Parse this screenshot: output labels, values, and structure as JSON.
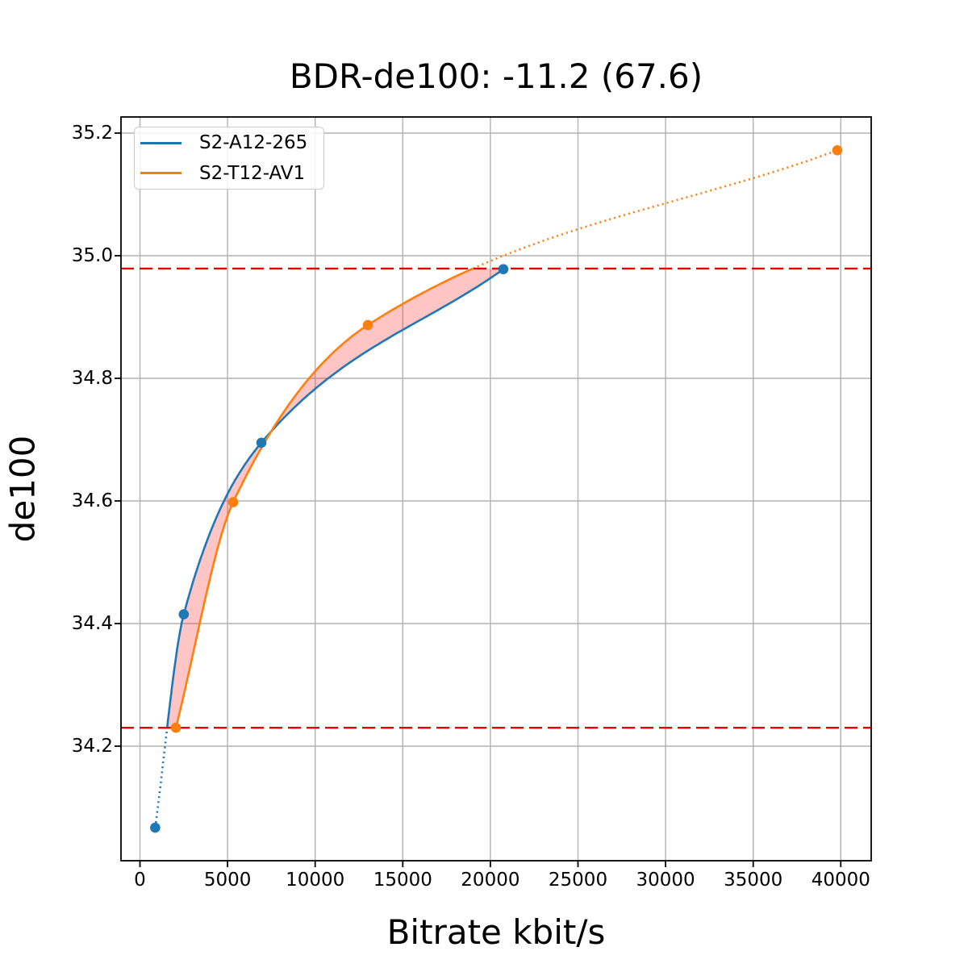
{
  "title": "BDR-de100: -11.2 (67.6)",
  "xlabel": "Bitrate kbit/s",
  "ylabel": "de100",
  "legend": [
    {
      "label": "S2-A12-265",
      "color": "#1f77b4"
    },
    {
      "label": "S2-T12-AV1",
      "color": "#ff7f0e"
    }
  ],
  "colors": {
    "series_blue": "#1f77b4",
    "series_orange": "#ff7f0e",
    "bd_interval_line": "#e60000",
    "bd_overlap_fill": "rgba(255,40,40,0.27)",
    "grid": "#b2b2b2",
    "spine": "#000000"
  },
  "chart_data": {
    "type": "line",
    "title": "BDR-de100: -11.2 (67.6)",
    "xlabel": "Bitrate kbit/s",
    "ylabel": "de100",
    "x_ticks": [
      0,
      5000,
      10000,
      15000,
      20000,
      25000,
      30000,
      35000,
      40000
    ],
    "x_tick_labels": [
      "0",
      "5000",
      "10000",
      "15000",
      "20000",
      "25000",
      "30000",
      "35000",
      "40000"
    ],
    "y_ticks": [
      35.2,
      35.0,
      34.8,
      34.6,
      34.4,
      34.2
    ],
    "y_tick_labels": [
      "35.2",
      "35.0",
      "34.8",
      "34.6",
      "34.4",
      "34.2"
    ],
    "xlim": [
      -1080,
      41740
    ],
    "ylim": [
      34.013,
      35.226
    ],
    "grid": true,
    "legend_position": "upper-left",
    "series": [
      {
        "name": "S2-A12-265",
        "color": "#1f77b4",
        "points": [
          [
            870,
            34.067
          ],
          [
            2500,
            34.415
          ],
          [
            6930,
            34.695
          ],
          [
            20740,
            34.978
          ]
        ],
        "style_note": "dotted below lower BD line, solid above, circle markers"
      },
      {
        "name": "S2-T12-AV1",
        "color": "#ff7f0e",
        "points": [
          [
            2050,
            34.23
          ],
          [
            5320,
            34.598
          ],
          [
            13010,
            34.887
          ],
          [
            39800,
            35.172
          ]
        ],
        "style_note": "solid below upper BD line, dotted above, circle markers"
      }
    ],
    "hlines": [
      {
        "y": 34.979,
        "style": "dashed",
        "color": "red",
        "meaning": "upper BD overlap bound"
      },
      {
        "y": 34.23,
        "style": "dashed",
        "color": "red",
        "meaning": "lower BD overlap bound"
      }
    ],
    "shaded_region": "area between the two rate-distortion curves between the red dashed bounds"
  }
}
